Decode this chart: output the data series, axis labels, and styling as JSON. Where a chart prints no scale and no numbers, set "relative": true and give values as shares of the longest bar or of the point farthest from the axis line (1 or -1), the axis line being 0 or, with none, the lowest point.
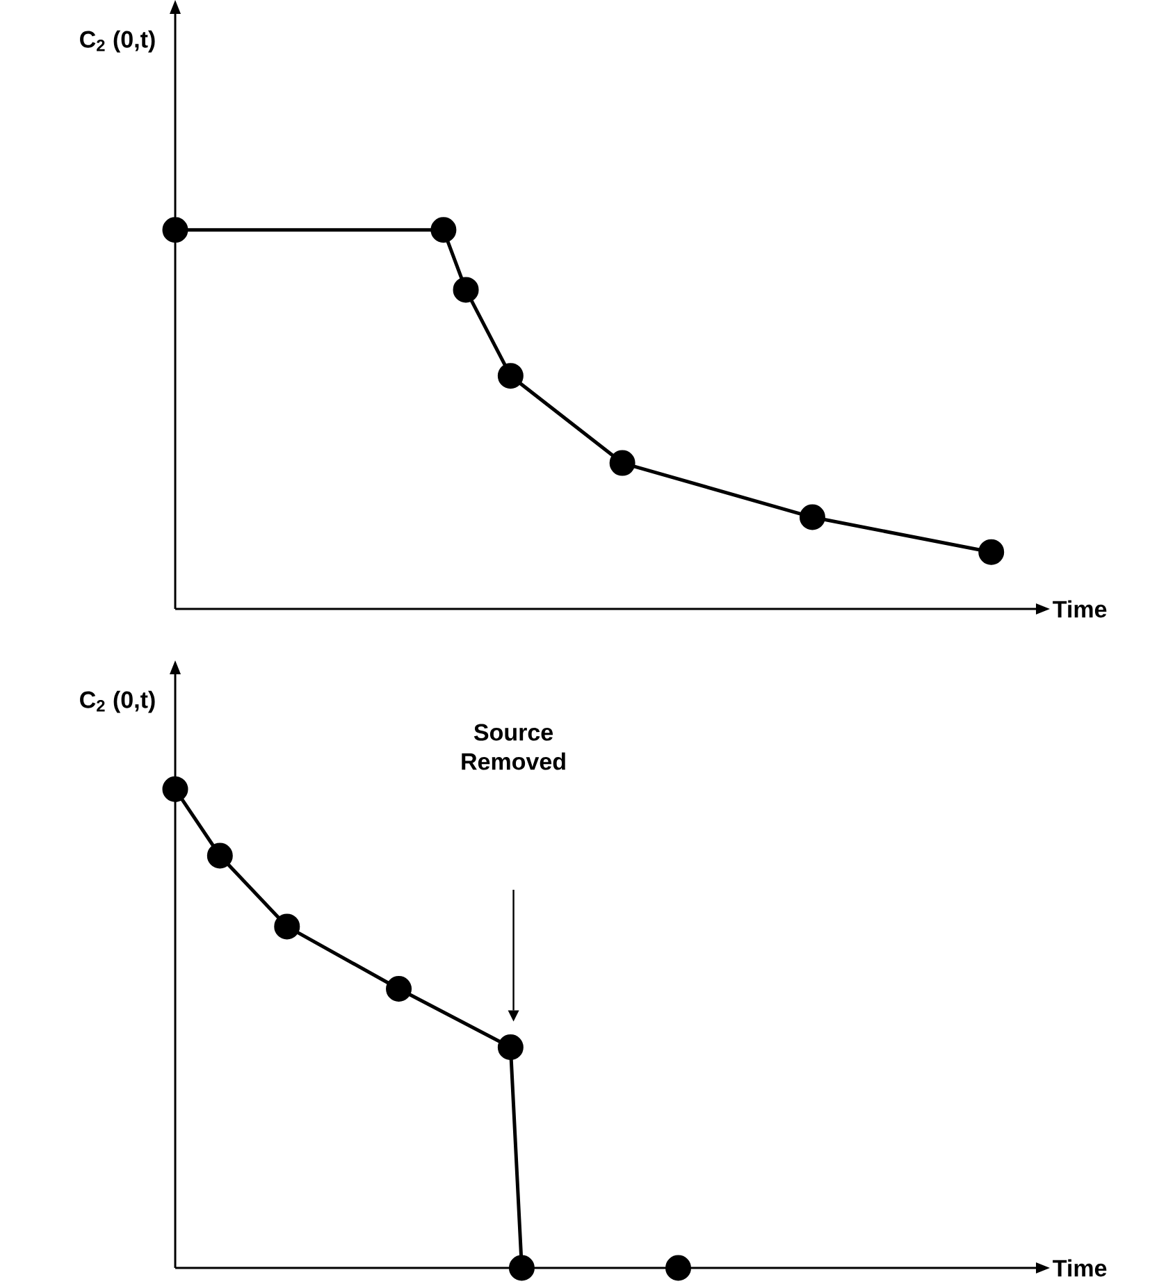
{
  "chart_data": [
    {
      "type": "line",
      "relative": true,
      "tick_labels": false,
      "ylabel": "C$_{2}$ (0,t)",
      "xlabel": "Time",
      "marker": "circle",
      "line_style": "solid",
      "categories": [
        null,
        null,
        null,
        null,
        null,
        null,
        null,
        null,
        null,
        null,
        null,
        null,
        null,
        null,
        null,
        null,
        null,
        null,
        null,
        null,
        null,
        null,
        null,
        null,
        null,
        null,
        null,
        null,
        null,
        null,
        null,
        null,
        null,
        null,
        null,
        null,
        null,
        null,
        null,
        null,
        null,
        null,
        null,
        null,
        null,
        null,
        null,
        null,
        null,
        null,
        null,
        null,
        null,
        null,
        null,
        null,
        null,
        null,
        null,
        null,
        null,
        null,
        null,
        null,
        null,
        null,
        null,
        null,
        null,
        null,
        null,
        null,
        null,
        null,
        null,
        null,
        null,
        null
      ],
      "series": [
        {
          "color": "#000000",
          "values": [
            1,
            null,
            null,
            null,
            null,
            null,
            null,
            null,
            null,
            null,
            null,
            null,
            null,
            null,
            null,
            null,
            null,
            null,
            null,
            null,
            null,
            null,
            null,
            null,
            1,
            null,
            0.842,
            null,
            null,
            null,
            0.615,
            null,
            null,
            null,
            null,
            null,
            null,
            null,
            null,
            null,
            0.385,
            null,
            null,
            null,
            null,
            null,
            null,
            null,
            null,
            null,
            null,
            null,
            null,
            null,
            null,
            null,
            null,
            0.242,
            null,
            null,
            null,
            null,
            null,
            null,
            null,
            null,
            null,
            null,
            null,
            null,
            null,
            null,
            null,
            0.15,
            null,
            null,
            null,
            null
          ]
        }
      ]
    },
    {
      "type": "line",
      "relative": true,
      "tick_labels": false,
      "ylabel": "C$_{2}$ (0,t)",
      "xlabel": "Time",
      "marker": "circle",
      "line_style": "solid",
      "annotations": [
        "Source Removed"
      ],
      "categories": [
        null,
        null,
        null,
        null,
        null,
        null,
        null,
        null,
        null,
        null,
        null,
        null,
        null,
        null,
        null,
        null,
        null,
        null,
        null,
        null,
        null,
        null,
        null,
        null,
        null,
        null,
        null,
        null,
        null,
        null,
        null,
        null,
        null,
        null,
        null,
        null,
        null,
        null,
        null,
        null,
        null,
        null,
        null,
        null,
        null,
        null,
        null,
        null,
        null,
        null,
        null,
        null,
        null,
        null,
        null,
        null,
        null,
        null,
        null,
        null,
        null,
        null,
        null,
        null,
        null,
        null,
        null,
        null,
        null,
        null,
        null,
        null,
        null,
        null,
        null,
        null,
        null,
        null
      ],
      "series": [
        {
          "color": "#000000",
          "values": [
            1,
            null,
            null,
            null,
            0.861,
            null,
            null,
            null,
            null,
            null,
            0.713,
            null,
            null,
            null,
            null,
            null,
            null,
            null,
            null,
            null,
            0.583,
            null,
            null,
            null,
            null,
            null,
            null,
            null,
            null,
            null,
            0.461,
            0,
            null,
            null,
            null,
            null,
            null,
            null,
            null,
            null,
            null,
            null,
            null,
            null,
            null,
            null,
            null,
            null,
            null,
            null,
            null,
            null,
            null,
            null,
            null,
            null,
            null,
            null,
            null,
            null,
            null,
            null,
            null,
            null,
            null,
            null,
            null,
            null,
            null,
            null,
            null,
            null,
            null,
            null,
            null,
            null,
            null,
            null
          ]
        },
        {
          "type": "scatter",
          "color": "#000000",
          "values": [
            null,
            null,
            null,
            null,
            null,
            null,
            null,
            null,
            null,
            null,
            null,
            null,
            null,
            null,
            null,
            null,
            null,
            null,
            null,
            null,
            null,
            null,
            null,
            null,
            null,
            null,
            null,
            null,
            null,
            null,
            null,
            null,
            null,
            null,
            null,
            null,
            null,
            null,
            null,
            null,
            null,
            null,
            null,
            null,
            null,
            0,
            null,
            null,
            null,
            null,
            null,
            null,
            null,
            null,
            null,
            null,
            null,
            null,
            null,
            null,
            null,
            null,
            null,
            null,
            null,
            null,
            null,
            null,
            null,
            null,
            null,
            null,
            null,
            null,
            null,
            null,
            null,
            null
          ]
        }
      ]
    }
  ]
}
